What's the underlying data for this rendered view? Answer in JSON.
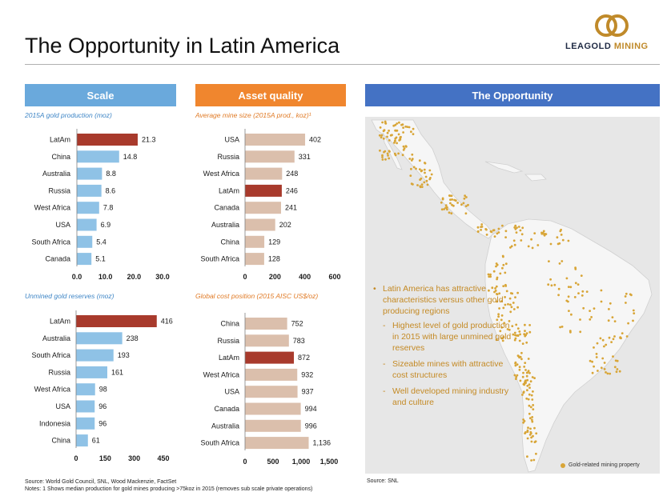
{
  "page": {
    "title": "The Opportunity in Latin America"
  },
  "logo": {
    "word1": "LEAGOLD",
    "word2": "MINING",
    "colors": {
      "navy": "#1f2a44",
      "gold": "#c08a2a"
    }
  },
  "headers": {
    "scale": "Scale",
    "asset_quality": "Asset quality",
    "opportunity": "The Opportunity"
  },
  "colors": {
    "scale_header": "#6aa9dc",
    "asset_header": "#f0862e",
    "opportunity_header": "#4472c4",
    "highlight_bar": "#a83a2c",
    "blue_bar": "#8fc2e6",
    "tan_bar": "#dbbfac",
    "bullet_text": "#c48a25",
    "map_dots": "#d8a537"
  },
  "chart_data": [
    {
      "type": "bar",
      "orientation": "horizontal",
      "title": "2015A gold production (moz)",
      "categories": [
        "LatAm",
        "China",
        "Australia",
        "Russia",
        "West Africa",
        "USA",
        "South Africa",
        "Canada"
      ],
      "values": [
        21.3,
        14.8,
        8.8,
        8.6,
        7.8,
        6.9,
        5.4,
        5.1
      ],
      "value_labels": [
        "21.3",
        "14.8",
        "8.8",
        "8.6",
        "7.8",
        "6.9",
        "5.4",
        "5.1"
      ],
      "highlight": "LatAm",
      "xlim": [
        0,
        30
      ],
      "xticks": [
        "0.0",
        "10.0",
        "20.0",
        "30.0"
      ],
      "tick_values": [
        0,
        10,
        20,
        30
      ],
      "bar_color": "#8fc2e6",
      "highlight_color": "#a83a2c"
    },
    {
      "type": "bar",
      "orientation": "horizontal",
      "title": "Unmined gold reserves (moz)",
      "categories": [
        "LatAm",
        "Australia",
        "South Africa",
        "Russia",
        "West Africa",
        "USA",
        "Indonesia",
        "China"
      ],
      "values": [
        416,
        238,
        193,
        161,
        98,
        96,
        96,
        61
      ],
      "value_labels": [
        "416",
        "238",
        "193",
        "161",
        "98",
        "96",
        "96",
        "61"
      ],
      "highlight": "LatAm",
      "xlim": [
        0,
        450
      ],
      "xticks": [
        "0",
        "150",
        "300",
        "450"
      ],
      "tick_values": [
        0,
        150,
        300,
        450
      ],
      "bar_color": "#8fc2e6",
      "highlight_color": "#a83a2c"
    },
    {
      "type": "bar",
      "orientation": "horizontal",
      "title": "Average mine size (2015A prod., koz)¹",
      "categories": [
        "USA",
        "Russia",
        "West Africa",
        "LatAm",
        "Canada",
        "Australia",
        "China",
        "South Africa"
      ],
      "values": [
        402,
        331,
        248,
        246,
        241,
        202,
        129,
        128
      ],
      "value_labels": [
        "402",
        "331",
        "248",
        "246",
        "241",
        "202",
        "129",
        "128"
      ],
      "highlight": "LatAm",
      "xlim": [
        0,
        600
      ],
      "xticks": [
        "0",
        "200",
        "400",
        "600"
      ],
      "tick_values": [
        0,
        200,
        400,
        600
      ],
      "bar_color": "#dbbfac",
      "highlight_color": "#a83a2c"
    },
    {
      "type": "bar",
      "orientation": "horizontal",
      "title": "Global cost position (2015 AISC US$/oz)",
      "categories": [
        "China",
        "Russia",
        "LatAm",
        "West Africa",
        "USA",
        "Canada",
        "Australia",
        "South Africa"
      ],
      "values": [
        752,
        783,
        872,
        932,
        937,
        994,
        996,
        1136
      ],
      "value_labels": [
        "752",
        "783",
        "872",
        "932",
        "937",
        "994",
        "996",
        "1,136"
      ],
      "highlight": "LatAm",
      "xlim": [
        0,
        1500
      ],
      "xticks": [
        "0",
        "500",
        "1,000",
        "1,500"
      ],
      "tick_values": [
        0,
        500,
        1000,
        1500
      ],
      "bar_color": "#dbbfac",
      "highlight_color": "#a83a2c"
    }
  ],
  "opportunity": {
    "main_bullet": "Latin America has attractive characteristics versus other gold producing regions",
    "sub_bullets": [
      "Highest level of gold production in 2015 with large unmined gold reserves",
      "Sizeable mines with attractive cost structures",
      "Well developed mining industry and culture"
    ],
    "map_legend": "Gold-related mining property"
  },
  "footer": {
    "source_left": "Source:   World Gold Council, SNL, Wood Mackenzie, FactSet",
    "notes": "Notes:   1 Shows median production for gold mines producing >75koz in 2015 (removes sub scale private operations)",
    "source_right": "Source: SNL"
  }
}
